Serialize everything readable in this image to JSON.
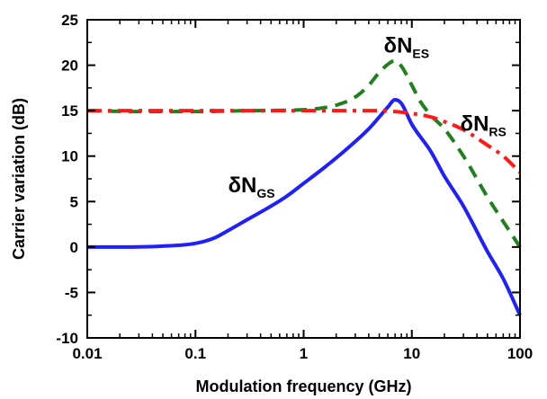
{
  "chart_data": {
    "type": "line",
    "xlabel": "Modulation frequency (GHz)",
    "ylabel": "Carrier variation (dB)",
    "xscale": "log",
    "xlim": [
      0.01,
      100
    ],
    "ylim": [
      -10,
      25
    ],
    "xticks": [
      0.01,
      0.1,
      1,
      10,
      100
    ],
    "xtick_labels": [
      "0.01",
      "0.1",
      "1",
      "10",
      "100"
    ],
    "yticks": [
      -10,
      -5,
      0,
      5,
      10,
      15,
      20,
      25
    ],
    "ytick_labels": [
      "-10",
      "-5",
      "0",
      "5",
      "10",
      "15",
      "20",
      "25"
    ],
    "grid": false,
    "series": [
      {
        "name": "δN_GS",
        "color": "#1f1fff",
        "style": "solid",
        "x": [
          0.01,
          0.02,
          0.05,
          0.1,
          0.15,
          0.2,
          0.3,
          0.5,
          0.7,
          1,
          1.5,
          2,
          3,
          4,
          5,
          6,
          7,
          8,
          10,
          15,
          20,
          30,
          50,
          70,
          100
        ],
        "y": [
          0,
          0,
          0.1,
          0.4,
          1.0,
          1.8,
          3.0,
          4.5,
          5.6,
          7.0,
          8.6,
          9.8,
          11.6,
          13.0,
          14.3,
          15.4,
          16.2,
          15.8,
          13.5,
          10.5,
          7.8,
          4.5,
          -0.5,
          -3.5,
          -7.5
        ]
      },
      {
        "name": "δN_ES",
        "color": "#208020",
        "style": "dashed",
        "x": [
          0.01,
          0.03,
          0.1,
          0.3,
          1,
          1.5,
          2,
          3,
          4,
          5,
          6,
          7,
          8,
          10,
          12,
          15,
          20,
          30,
          50,
          70,
          100
        ],
        "y": [
          15,
          14.9,
          14.9,
          15,
          15.1,
          15.3,
          15.6,
          16.5,
          17.8,
          19.2,
          20.1,
          20.5,
          19.9,
          17.8,
          16.0,
          14.5,
          13.0,
          10.0,
          5.5,
          2.8,
          0.0
        ]
      },
      {
        "name": "δN_RS",
        "color": "#ff1a1a",
        "style": "dashdot",
        "x": [
          0.01,
          0.1,
          1,
          3,
          5,
          7,
          10,
          15,
          20,
          30,
          50,
          70,
          100
        ],
        "y": [
          15,
          15,
          15,
          15,
          15,
          14.9,
          14.7,
          14.3,
          13.8,
          12.9,
          11.2,
          10.0,
          8.2
        ]
      }
    ],
    "annotations": [
      {
        "main": "δN",
        "sub": "GS",
        "x": 0.2,
        "y": 6.0
      },
      {
        "main": "δN",
        "sub": "ES",
        "x": 5.5,
        "y": 21.4
      },
      {
        "main": "δN",
        "sub": "RS",
        "x": 28,
        "y": 12.8
      }
    ]
  }
}
